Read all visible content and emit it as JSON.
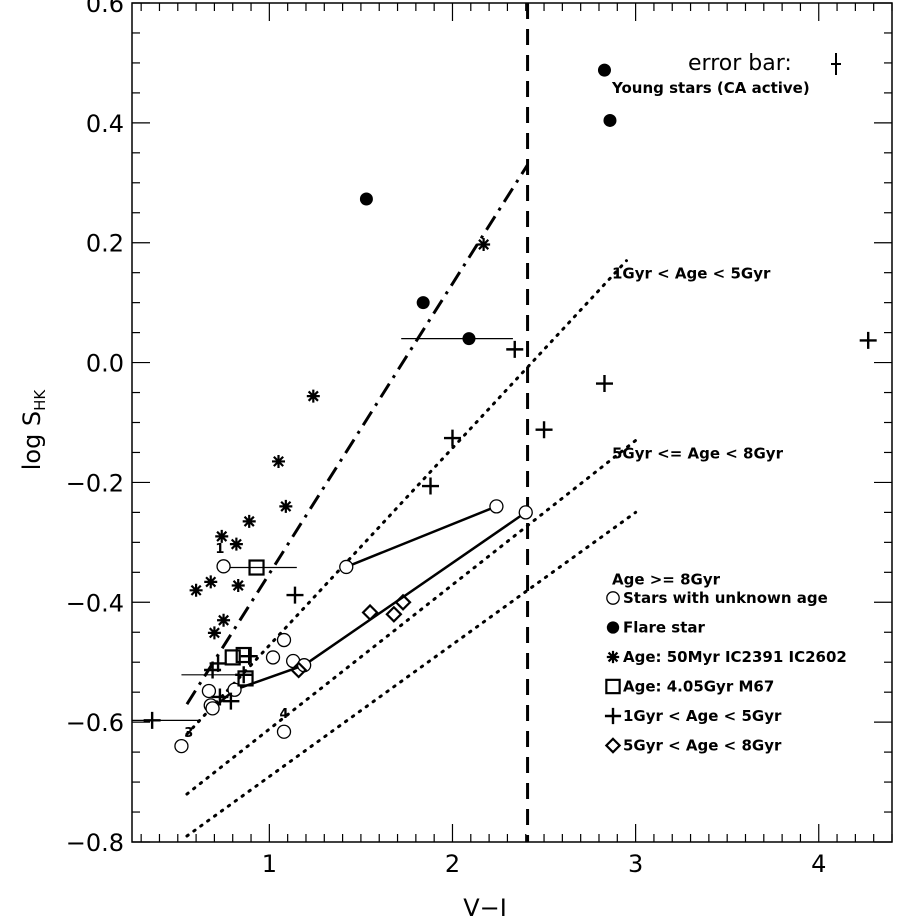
{
  "chart_data": {
    "type": "scatter",
    "xlabel": "V−I",
    "ylabel": "log S",
    "ylabel_sub": "HK",
    "xlim": [
      0.25,
      4.4
    ],
    "ylim": [
      -0.8,
      0.6
    ],
    "x_ticks": [
      1,
      2,
      3,
      4
    ],
    "y_ticks": [
      -0.8,
      -0.6,
      -0.4,
      -0.2,
      0.0,
      0.2,
      0.4,
      0.6
    ],
    "x_tick_labels": [
      "1",
      "2",
      "3",
      "4"
    ],
    "y_tick_labels": [
      "−0.8",
      "−0.6",
      "−0.4",
      "−0.2",
      "0.0",
      "0.2",
      "0.4",
      "0.6"
    ],
    "error_bar_label": "error bar:",
    "vertical_line_x": 2.41,
    "region_labels": [
      {
        "text": "Young stars (CA active)",
        "x": 2.82,
        "y": 0.46
      },
      {
        "text": "1Gyr < Age < 5Gyr",
        "x": 2.82,
        "y": 0.15
      },
      {
        "text": "5Gyr <= Age < 8Gyr",
        "x": 2.82,
        "y": -0.15
      },
      {
        "text": "Age >= 8Gyr",
        "x": 2.82,
        "y": -0.36
      }
    ],
    "boundary_lines": [
      {
        "style": "dashdot",
        "points": [
          [
            0.55,
            -0.57
          ],
          [
            2.41,
            0.33
          ]
        ]
      },
      {
        "style": "dotted",
        "points": [
          [
            0.55,
            -0.62
          ],
          [
            2.95,
            0.17
          ]
        ]
      },
      {
        "style": "dotted",
        "points": [
          [
            0.55,
            -0.72
          ],
          [
            3.0,
            -0.13
          ]
        ]
      },
      {
        "style": "dotted",
        "points": [
          [
            0.55,
            -0.79
          ],
          [
            3.0,
            -0.25
          ]
        ]
      }
    ],
    "legend": [
      {
        "marker": "open-circle",
        "label": "Stars with unknown age"
      },
      {
        "marker": "filled-circle",
        "label": "Flare star"
      },
      {
        "marker": "asterisk",
        "label": "Age: 50Myr IC2391 IC2602"
      },
      {
        "marker": "square",
        "label": "Age: 4.05Gyr M67"
      },
      {
        "marker": "plus",
        "label": "1Gyr < Age < 5Gyr"
      },
      {
        "marker": "diamond",
        "label": "5Gyr < Age < 8Gyr"
      }
    ],
    "series": [
      {
        "marker": "filled-circle",
        "points": [
          [
            1.53,
            0.273
          ],
          [
            1.84,
            0.1
          ],
          [
            2.09,
            0.04
          ],
          [
            2.83,
            0.488
          ],
          [
            2.86,
            0.404
          ]
        ]
      },
      {
        "marker": "asterisk",
        "points": [
          [
            0.6,
            -0.38
          ],
          [
            0.68,
            -0.366
          ],
          [
            0.7,
            -0.451
          ],
          [
            0.74,
            -0.29
          ],
          [
            0.75,
            -0.43
          ],
          [
            0.82,
            -0.303
          ],
          [
            0.83,
            -0.372
          ],
          [
            0.89,
            -0.265
          ],
          [
            1.05,
            -0.165
          ],
          [
            1.09,
            -0.24
          ],
          [
            1.24,
            -0.056
          ],
          [
            2.17,
            0.197
          ]
        ]
      },
      {
        "marker": "square",
        "points": [
          [
            0.93,
            -0.342
          ],
          [
            0.8,
            -0.492
          ],
          [
            0.86,
            -0.488
          ],
          [
            0.87,
            -0.527
          ]
        ]
      },
      {
        "marker": "plus",
        "points": [
          [
            0.36,
            -0.597
          ],
          [
            0.69,
            -0.513
          ],
          [
            0.72,
            -0.502
          ],
          [
            0.73,
            -0.558
          ],
          [
            0.79,
            -0.565
          ],
          [
            0.86,
            -0.521
          ],
          [
            0.89,
            -0.49
          ],
          [
            1.14,
            -0.388
          ],
          [
            1.88,
            -0.206
          ],
          [
            2.0,
            -0.126
          ],
          [
            2.34,
            0.022
          ],
          [
            2.5,
            -0.112
          ],
          [
            2.83,
            -0.035
          ],
          [
            4.27,
            0.037
          ]
        ]
      },
      {
        "marker": "diamond",
        "points": [
          [
            1.16,
            -0.513
          ],
          [
            1.55,
            -0.417
          ],
          [
            1.68,
            -0.42
          ],
          [
            1.73,
            -0.4
          ]
        ]
      },
      {
        "marker": "open-circle",
        "points": [
          [
            0.52,
            -0.64
          ],
          [
            0.67,
            -0.548
          ],
          [
            0.68,
            -0.572
          ],
          [
            0.69,
            -0.577
          ],
          [
            0.75,
            -0.34
          ],
          [
            0.81,
            -0.546
          ],
          [
            1.02,
            -0.492
          ],
          [
            1.08,
            -0.463
          ],
          [
            1.13,
            -0.498
          ],
          [
            1.19,
            -0.505
          ],
          [
            1.08,
            -0.616
          ],
          [
            1.42,
            -0.341
          ],
          [
            2.24,
            -0.24
          ],
          [
            2.4,
            -0.25
          ]
        ]
      }
    ],
    "connecting_lines": [
      {
        "points": [
          [
            1.42,
            -0.341
          ],
          [
            2.24,
            -0.24
          ]
        ]
      },
      {
        "points": [
          [
            1.19,
            -0.505
          ],
          [
            2.4,
            -0.25
          ]
        ]
      },
      {
        "points": [
          [
            0.81,
            -0.546
          ],
          [
            1.19,
            -0.505
          ]
        ]
      },
      {
        "points": [
          [
            0.69,
            -0.577
          ],
          [
            0.81,
            -0.546
          ]
        ]
      }
    ],
    "horizontal_error_bars": [
      {
        "y": -0.342,
        "x1": 0.72,
        "x2": 1.15
      },
      {
        "y": 0.04,
        "x1": 1.72,
        "x2": 2.33
      },
      {
        "y": -0.597,
        "x1": 0.25,
        "x2": 0.62
      },
      {
        "y": -0.521,
        "x1": 0.52,
        "x2": 0.86
      }
    ],
    "point_numbers": [
      {
        "text": "1",
        "x": 0.73,
        "y": -0.318
      },
      {
        "text": "3",
        "x": 0.56,
        "y": -0.625
      },
      {
        "text": "4",
        "x": 1.08,
        "y": -0.593
      }
    ]
  }
}
